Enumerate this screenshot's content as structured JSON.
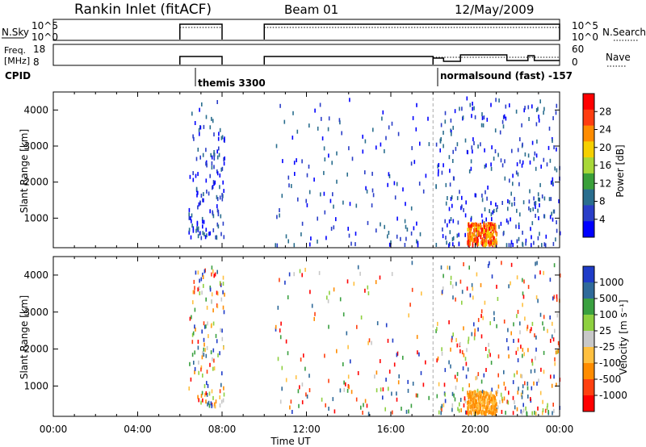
{
  "header": {
    "station": "Rankin Inlet (fitACF)",
    "beam": "Beam 01",
    "date": "12/May/2009"
  },
  "top_panels": {
    "nsky": {
      "left_label": "N.Sky",
      "left_ticks": [
        "10^5",
        "10^0"
      ],
      "right_label": "N.Search",
      "right_ticks": [
        "10^5",
        "10^0"
      ]
    },
    "freq": {
      "left_label_1": "Freq.",
      "left_label_2": "[MHz]",
      "left_ticks": [
        "18",
        "8"
      ],
      "right_label": "Nave",
      "right_ticks": [
        "60",
        "0"
      ]
    },
    "cpid": {
      "label": "CPID",
      "segments": [
        {
          "start_hour": 6,
          "label": "themis 3300"
        },
        {
          "start_hour": 18,
          "label": "normalsound (fast) -157"
        }
      ]
    }
  },
  "chart_data": [
    {
      "type": "heatmap",
      "title": "",
      "quantity": "Power",
      "ylabel": "Slant Range [km]",
      "xlabel": "",
      "xlim": [
        "00:00",
        "24:00"
      ],
      "ylim": [
        180,
        4500
      ],
      "yticks": [
        1000,
        2000,
        3000,
        4000
      ],
      "colorbar": {
        "label": "Power [dB]",
        "ticks": [
          "28",
          "24",
          "20",
          "16",
          "12",
          "8",
          "4"
        ],
        "colors": [
          "#ff0000",
          "#ff3d10",
          "#ff8c00",
          "#f5d000",
          "#a8d838",
          "#3aa03a",
          "#2a6e8e",
          "#2a3ec8",
          "#0000ff"
        ]
      },
      "regions": [
        {
          "from_hour": 6.4,
          "to_hour": 8.1,
          "range_km": [
            500,
            4300
          ],
          "level": "low"
        },
        {
          "from_hour": 10.5,
          "to_hour": 17.8,
          "range_km": [
            300,
            4400
          ],
          "level": "low"
        },
        {
          "from_hour": 18.1,
          "to_hour": 24,
          "range_km": [
            300,
            4400
          ],
          "level": "low-moderate"
        },
        {
          "from_hour": 19.6,
          "to_hour": 21.0,
          "range_km": [
            300,
            900
          ],
          "level": "high"
        }
      ]
    },
    {
      "type": "heatmap",
      "title": "",
      "quantity": "Velocity",
      "ylabel": "Slant Range [km]",
      "xlabel": "Time UT",
      "xlim": [
        "00:00",
        "24:00"
      ],
      "ylim": [
        180,
        4500
      ],
      "yticks": [
        1000,
        2000,
        3000,
        4000
      ],
      "colorbar": {
        "label": "Velocity [m s⁻¹]",
        "ticks": [
          "1000",
          "500",
          "100",
          "25",
          "-25",
          "-100",
          "-500",
          "-1000"
        ],
        "colors": [
          "#1f3cc8",
          "#2f6a9a",
          "#3aa040",
          "#8ed040",
          "#c8c8c8",
          "#ffc040",
          "#ff8c00",
          "#ff4010",
          "#ff0000"
        ]
      },
      "regions": [
        {
          "from_hour": 6.4,
          "to_hour": 8.1,
          "range_km": [
            500,
            4300
          ],
          "level": "mixed"
        },
        {
          "from_hour": 10.5,
          "to_hour": 17.8,
          "range_km": [
            300,
            4400
          ],
          "level": "mixed"
        },
        {
          "from_hour": 18.1,
          "to_hour": 24,
          "range_km": [
            300,
            4400
          ],
          "level": "mixed"
        },
        {
          "from_hour": 19.6,
          "to_hour": 21.0,
          "range_km": [
            300,
            900
          ],
          "level": "negative"
        }
      ]
    }
  ],
  "time_axis": {
    "ticks": [
      "00:00",
      "04:00",
      "08:00",
      "12:00",
      "16:00",
      "20:00",
      "00:00"
    ],
    "label": "Time UT"
  }
}
